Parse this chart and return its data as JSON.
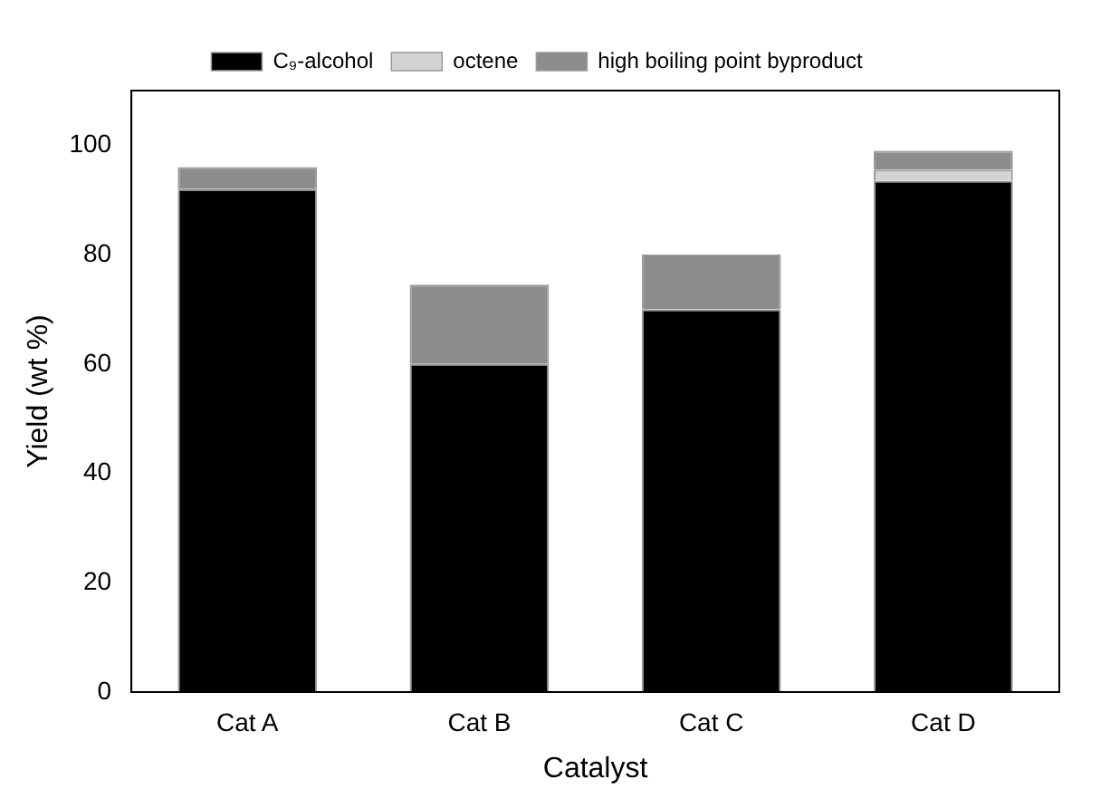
{
  "chart_data": {
    "type": "bar",
    "stacked": true,
    "xlabel": "Catalyst",
    "ylabel": "Yield (wt %)",
    "categories": [
      "Cat A",
      "Cat B",
      "Cat C",
      "Cat D"
    ],
    "series": [
      {
        "name": "C₉-alcohol",
        "color": "#000000",
        "values": [
          92,
          60,
          70,
          93.5
        ]
      },
      {
        "name": "octene",
        "color": "#d3d3d3",
        "values": [
          0,
          0,
          0,
          2
        ]
      },
      {
        "name": "high boiling point byproduct",
        "color": "#8c8c8c",
        "values": [
          4,
          14.5,
          10,
          3.5
        ]
      }
    ],
    "ylim": [
      0,
      110
    ],
    "yticks": [
      0,
      20,
      40,
      60,
      80,
      100
    ],
    "grid": false,
    "legend": "top"
  }
}
